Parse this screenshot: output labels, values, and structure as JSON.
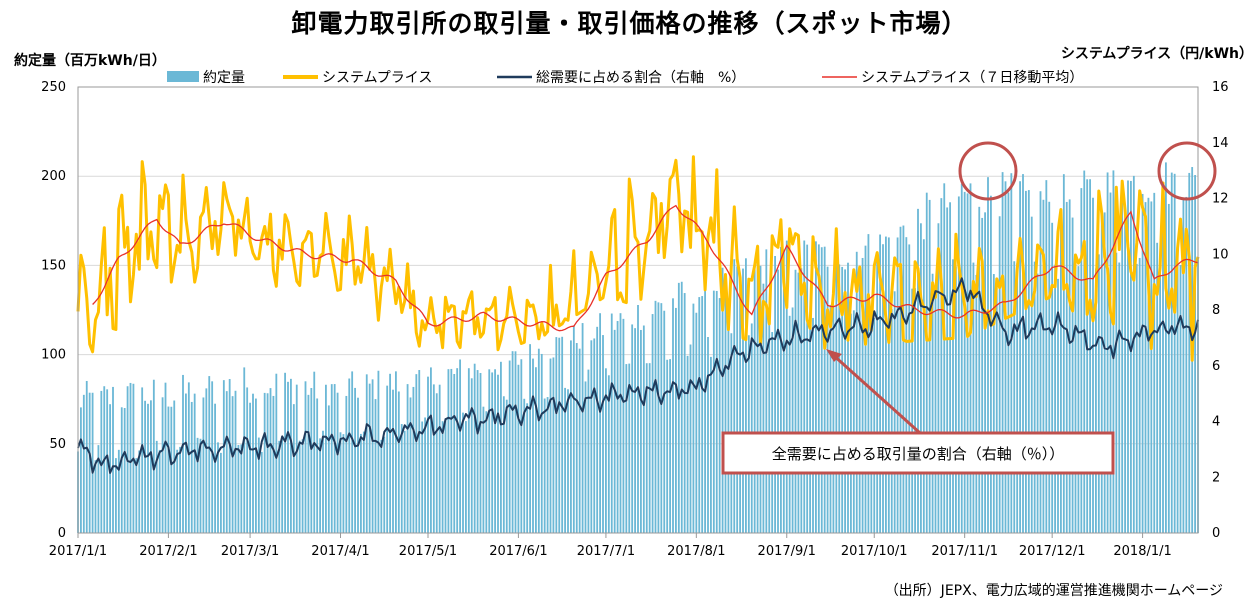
{
  "chart_data": {
    "type": "bar+line",
    "title": "卸電力取引所の取引量・取引価格の推移（スポット市場）",
    "ylabel_left": "約定量（百万kWh/日）",
    "ylabel_right": "システムプライス（円/kWh）",
    "source": "（出所）JEPX、電力広域的運営推進機関ホームページ",
    "annotation": "全需要に占める取引量の割合（右軸（％））",
    "y_left": {
      "min": 0,
      "max": 250,
      "ticks": [
        "0",
        "50",
        "100",
        "150",
        "200",
        "250"
      ]
    },
    "y_right": {
      "min": 0,
      "max": 16,
      "ticks": [
        "0",
        "2",
        "4",
        "6",
        "8",
        "10",
        "12",
        "14",
        "16"
      ]
    },
    "x_range": [
      "2017-01-01",
      "2018-01-20"
    ],
    "x_ticks": [
      "2017/1/1",
      "2017/2/1",
      "2017/3/1",
      "2017/4/1",
      "2017/5/1",
      "2017/6/1",
      "2017/7/1",
      "2017/8/1",
      "2017/9/1",
      "2017/10/1",
      "2017/11/1",
      "2017/12/1",
      "2018/1/1"
    ],
    "legend": {
      "volume": "約定量",
      "price": "システムプライス",
      "share": "総需要に占める割合（右軸　%）",
      "ma7": "システムプライス（７日移動平均）"
    },
    "grid": true,
    "legend_placement": "top",
    "colors": {
      "volume": "#6bb8d6",
      "price": "#ffc000",
      "share": "#1f3b5c",
      "ma7": "#e8312a",
      "annot": "#c0504d"
    },
    "volume_monthly_approx": [
      {
        "month": "2017-01",
        "low": 38,
        "high": 85
      },
      {
        "month": "2017-02",
        "low": 42,
        "high": 88
      },
      {
        "month": "2017-03",
        "low": 45,
        "high": 95
      },
      {
        "month": "2017-04",
        "low": 48,
        "high": 90
      },
      {
        "month": "2017-05",
        "low": 55,
        "high": 95
      },
      {
        "month": "2017-06",
        "low": 70,
        "high": 105
      },
      {
        "month": "2017-07",
        "low": 85,
        "high": 125
      },
      {
        "month": "2017-08",
        "low": 95,
        "high": 145
      },
      {
        "month": "2017-09",
        "low": 115,
        "high": 165
      },
      {
        "month": "2017-10",
        "low": 120,
        "high": 170
      },
      {
        "month": "2017-11",
        "low": 140,
        "high": 205
      },
      {
        "month": "2017-12",
        "low": 140,
        "high": 200
      },
      {
        "month": "2018-01",
        "low": 150,
        "high": 210
      }
    ],
    "price_ma7_keypoints": [
      {
        "x": "2017-01-05",
        "y": 8.0
      },
      {
        "x": "2017-01-15",
        "y": 9.8
      },
      {
        "x": "2017-01-28",
        "y": 11.3
      },
      {
        "x": "2017-02-05",
        "y": 10.3
      },
      {
        "x": "2017-02-20",
        "y": 11.2
      },
      {
        "x": "2017-03-05",
        "y": 10.5
      },
      {
        "x": "2017-03-20",
        "y": 10.0
      },
      {
        "x": "2017-04-05",
        "y": 9.8
      },
      {
        "x": "2017-04-20",
        "y": 9.0
      },
      {
        "x": "2017-05-01",
        "y": 7.5
      },
      {
        "x": "2017-05-20",
        "y": 7.8
      },
      {
        "x": "2017-06-01",
        "y": 7.6
      },
      {
        "x": "2017-06-20",
        "y": 7.3
      },
      {
        "x": "2017-07-01",
        "y": 9.2
      },
      {
        "x": "2017-07-15",
        "y": 10.5
      },
      {
        "x": "2017-07-25",
        "y": 11.8
      },
      {
        "x": "2017-08-05",
        "y": 10.5
      },
      {
        "x": "2017-08-20",
        "y": 7.8
      },
      {
        "x": "2017-09-01",
        "y": 10.2
      },
      {
        "x": "2017-09-15",
        "y": 8.2
      },
      {
        "x": "2017-10-01",
        "y": 8.5
      },
      {
        "x": "2017-10-15",
        "y": 8.0
      },
      {
        "x": "2017-11-01",
        "y": 7.8
      },
      {
        "x": "2017-11-15",
        "y": 8.2
      },
      {
        "x": "2017-12-01",
        "y": 9.6
      },
      {
        "x": "2017-12-15",
        "y": 9.0
      },
      {
        "x": "2017-12-28",
        "y": 11.5
      },
      {
        "x": "2018-01-05",
        "y": 9.0
      },
      {
        "x": "2018-01-12",
        "y": 9.6
      },
      {
        "x": "2018-01-20",
        "y": 9.8
      }
    ],
    "price_daily_range_approx": [
      {
        "month": "2017-01",
        "low": 6.0,
        "high": 13.3
      },
      {
        "month": "2017-02",
        "low": 9.0,
        "high": 13.9
      },
      {
        "month": "2017-03",
        "low": 9.0,
        "high": 11.8
      },
      {
        "month": "2017-04",
        "low": 8.5,
        "high": 11.8
      },
      {
        "month": "2017-05",
        "low": 6.5,
        "high": 9.0
      },
      {
        "month": "2017-06",
        "low": 6.5,
        "high": 8.8
      },
      {
        "month": "2017-07",
        "low": 8.5,
        "high": 14.6
      },
      {
        "month": "2017-08",
        "low": 7.5,
        "high": 13.5
      },
      {
        "month": "2017-09",
        "low": 6.5,
        "high": 11.5
      },
      {
        "month": "2017-10",
        "low": 6.8,
        "high": 11.0
      },
      {
        "month": "2017-11",
        "low": 7.0,
        "high": 12.5
      },
      {
        "month": "2017-12",
        "low": 8.5,
        "high": 13.0
      },
      {
        "month": "2018-01",
        "low": 6.2,
        "high": 13.0
      }
    ],
    "share_keypoints": [
      {
        "x": "2017-01-01",
        "y": 3.0
      },
      {
        "x": "2017-01-10",
        "y": 2.5
      },
      {
        "x": "2017-02-01",
        "y": 2.9
      },
      {
        "x": "2017-03-01",
        "y": 3.1
      },
      {
        "x": "2017-04-01",
        "y": 3.3
      },
      {
        "x": "2017-05-01",
        "y": 3.8
      },
      {
        "x": "2017-06-01",
        "y": 4.3
      },
      {
        "x": "2017-07-01",
        "y": 4.9
      },
      {
        "x": "2017-08-01",
        "y": 5.2
      },
      {
        "x": "2017-08-15",
        "y": 6.4
      },
      {
        "x": "2017-09-01",
        "y": 7.0
      },
      {
        "x": "2017-10-01",
        "y": 7.5
      },
      {
        "x": "2017-11-01",
        "y": 8.8
      },
      {
        "x": "2017-11-15",
        "y": 7.2
      },
      {
        "x": "2017-12-01",
        "y": 7.5
      },
      {
        "x": "2017-12-20",
        "y": 6.6
      },
      {
        "x": "2018-01-01",
        "y": 7.2
      },
      {
        "x": "2018-01-20",
        "y": 7.5
      }
    ]
  }
}
